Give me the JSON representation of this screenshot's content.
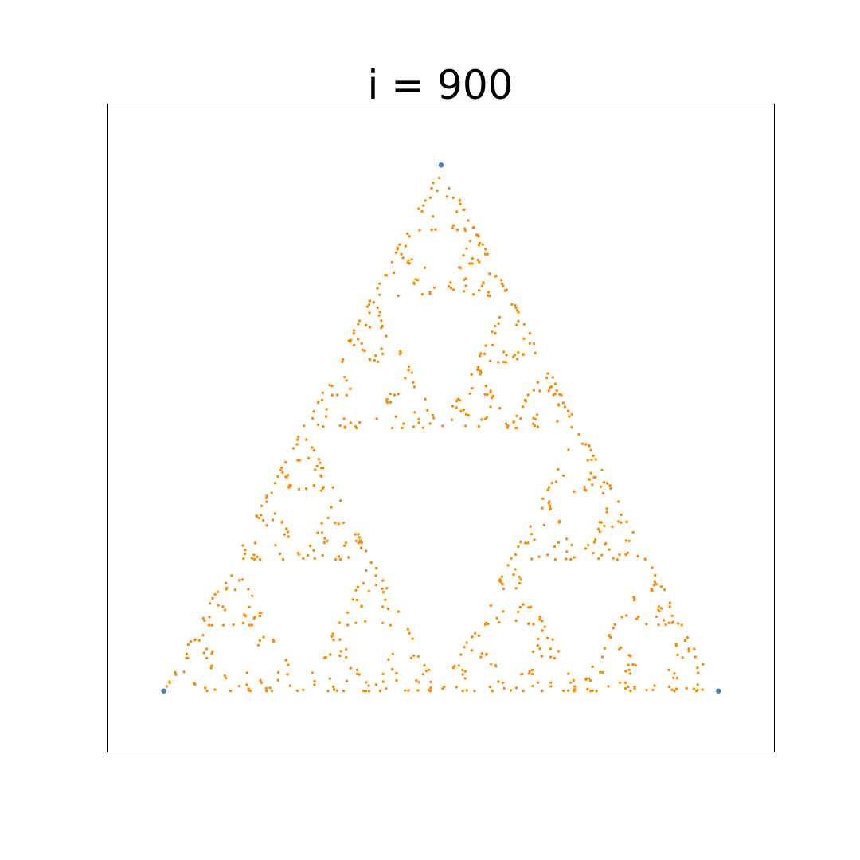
{
  "chart_data": {
    "type": "scatter",
    "title": "i = 900",
    "xlabel": "",
    "ylabel": "",
    "xlim": [
      -0.1,
      1.1
    ],
    "ylim": [
      -0.1,
      0.966
    ],
    "grid": false,
    "axis_ticks": false,
    "series": [
      {
        "role": "vertices",
        "color": "#4682b4",
        "points": [
          [
            0,
            0
          ],
          [
            1,
            0
          ],
          [
            0.5,
            0.866
          ]
        ]
      },
      {
        "role": "chaos-game-points",
        "color": "#ff8c00",
        "generator": "chaos-game",
        "iterations": 900,
        "seed": 900
      }
    ]
  }
}
